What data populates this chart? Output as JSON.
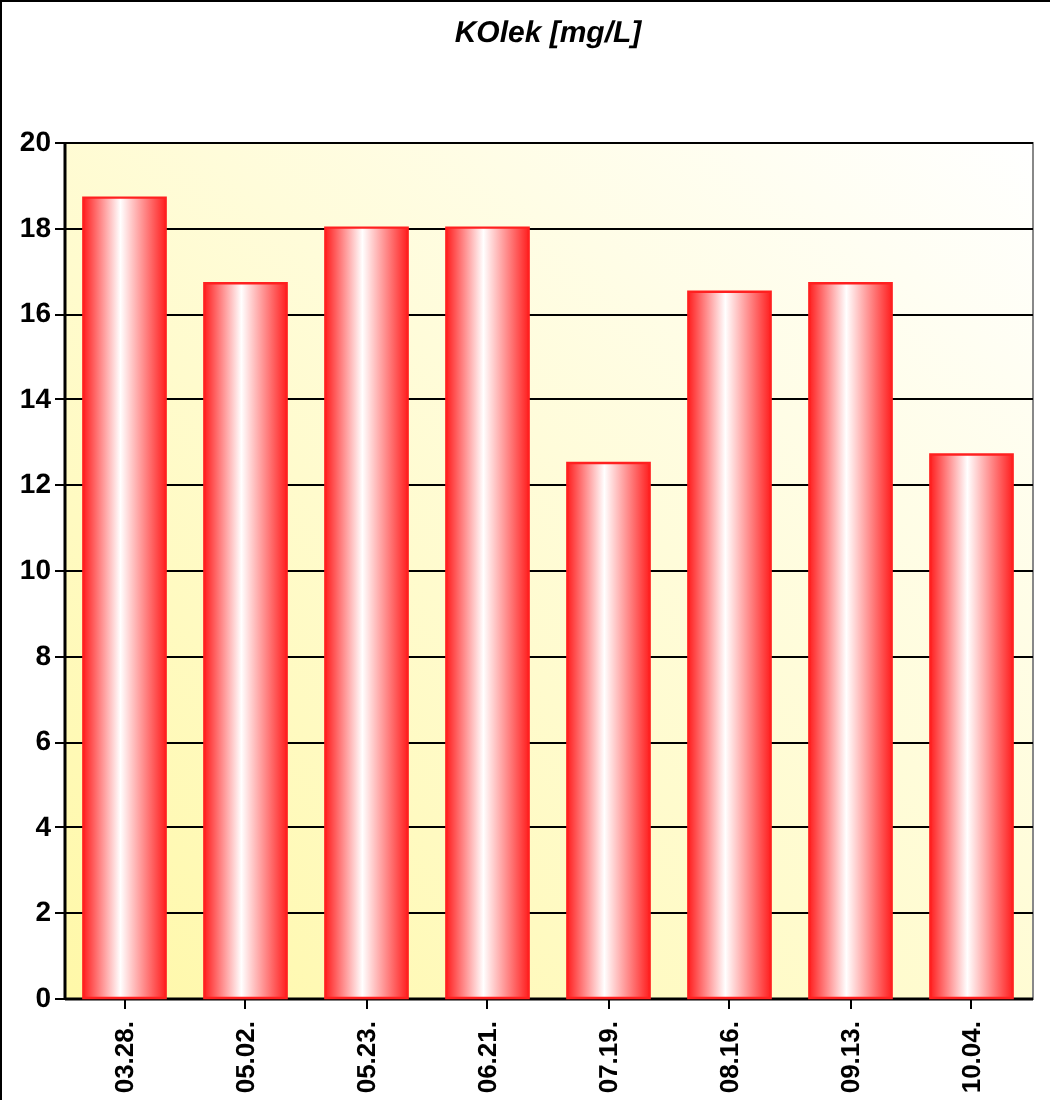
{
  "chart_data": {
    "type": "bar",
    "title": "KOlek [mg/L]",
    "categories": [
      "03.28.",
      "05.02.",
      "05.23.",
      "06.21.",
      "07.19.",
      "08.16.",
      "09.13.",
      "10.04."
    ],
    "values": [
      18.7,
      16.7,
      18.0,
      18.0,
      12.5,
      16.5,
      16.7,
      12.7
    ],
    "color": "#ff2020",
    "ylim": [
      0,
      20
    ],
    "yticks": [
      0,
      2,
      4,
      6,
      8,
      10,
      12,
      14,
      16,
      18,
      20
    ],
    "grid": "y"
  }
}
